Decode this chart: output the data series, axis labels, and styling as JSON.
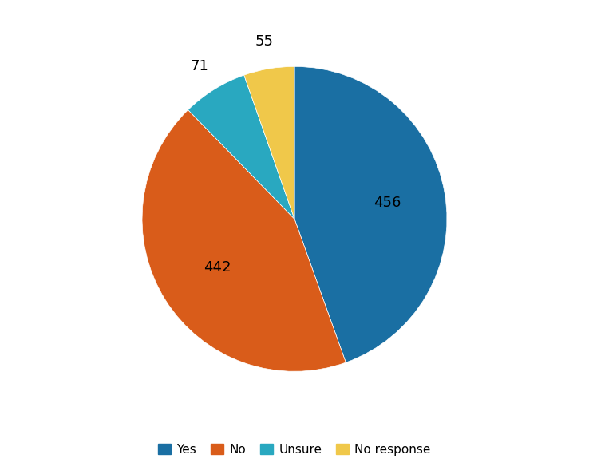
{
  "labels": [
    "Yes",
    "No",
    "Unsure",
    "No response"
  ],
  "values": [
    456,
    442,
    71,
    55
  ],
  "colors": [
    "#1a6fa3",
    "#d95c1a",
    "#29a8c0",
    "#f0c84a"
  ],
  "legend_labels": [
    "Yes",
    "No",
    "Unsure",
    "No response"
  ],
  "title": "",
  "background_color": "#ffffff",
  "label_fontsize": 13,
  "legend_fontsize": 11,
  "label_radii": [
    0.62,
    0.6,
    1.18,
    1.18
  ]
}
